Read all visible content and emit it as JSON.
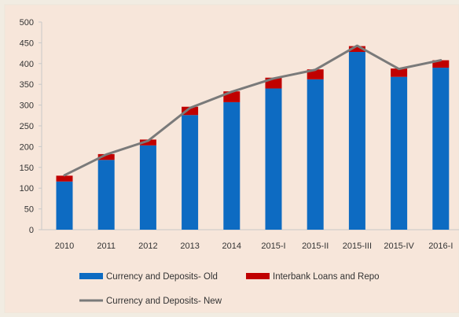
{
  "colors": {
    "outer_bg": "#f1ece2",
    "plot_bg": "#f7e6da",
    "plot_border": "#ece6d9",
    "old_series": "#0d6bc2",
    "interbank_series": "#c00000",
    "new_series": "#7a7a7a",
    "axis": "#c8c8c8",
    "text": "#333333"
  },
  "chart_data": {
    "type": "bar",
    "stacked": true,
    "categories": [
      "2010",
      "2011",
      "2012",
      "2013",
      "2014",
      "2015-I",
      "2015-II",
      "2015-III",
      "2015-IV",
      "2016-I"
    ],
    "ylim": [
      0,
      500
    ],
    "yticks": [
      0,
      50,
      100,
      150,
      200,
      250,
      300,
      350,
      400,
      450,
      500
    ],
    "grid": false,
    "legend_position": "bottom",
    "series": [
      {
        "name": "Currency and Deposits- Old",
        "kind": "bar",
        "color": "#0d6bc2",
        "values": [
          116,
          168,
          203,
          276,
          307,
          340,
          362,
          428,
          368,
          390
        ]
      },
      {
        "name": "Interbank Loans and Repo",
        "kind": "bar",
        "color": "#c00000",
        "values": [
          14,
          14,
          14,
          20,
          26,
          26,
          24,
          14,
          20,
          18
        ]
      },
      {
        "name": "Currency and Deposits- New",
        "kind": "line",
        "color": "#7a7a7a",
        "values": [
          131,
          181,
          214,
          293,
          332,
          364,
          385,
          443,
          387,
          408
        ]
      }
    ]
  }
}
